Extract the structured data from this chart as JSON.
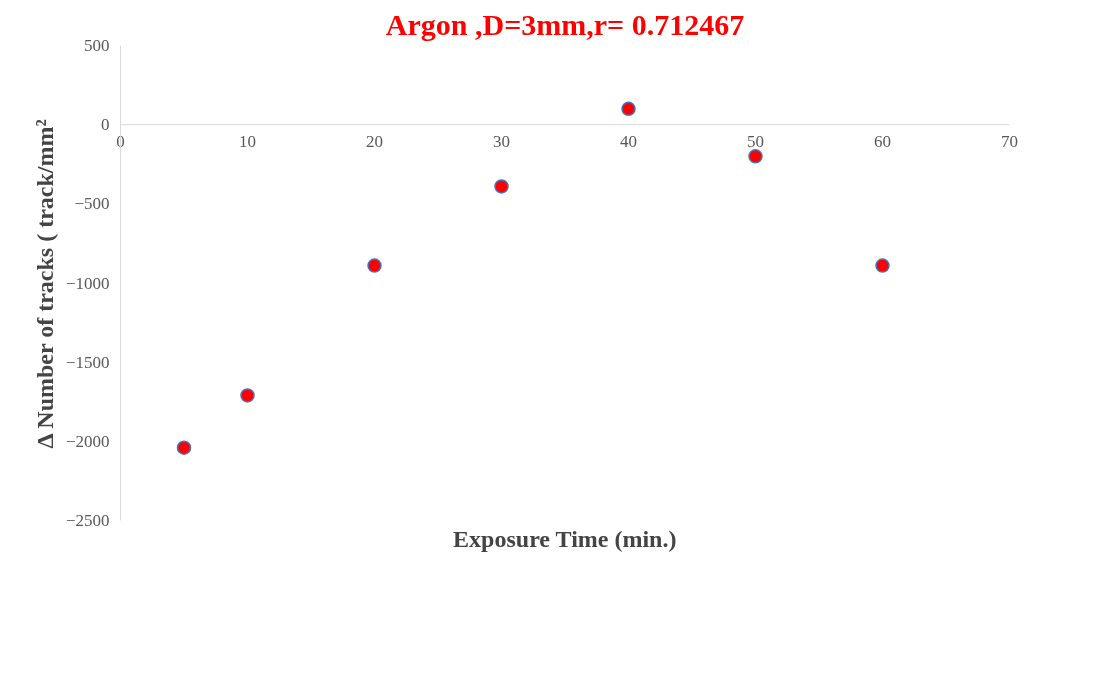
{
  "chart_data": {
    "type": "scatter",
    "title": "Argon ,D=3mm,r= 0.712467",
    "xlabel": "Exposure Time (min.)",
    "ylabel": "Δ Number of tracks ( track/mm²",
    "x": [
      5,
      10,
      20,
      30,
      40,
      50,
      60
    ],
    "series": [
      {
        "color": "#ff0000",
        "values": [
          -2040,
          -1710,
          -890,
          -390,
          100,
          -200,
          -890
        ]
      }
    ],
    "xlim": [
      0,
      70
    ],
    "xticks": [
      0,
      10,
      20,
      30,
      40,
      50,
      60,
      70
    ],
    "ylim": [
      -2500,
      500
    ],
    "yticks": [
      -2500,
      -2000,
      -1500,
      -1000,
      -500,
      0,
      500
    ],
    "marker": "circle",
    "grid": false
  }
}
